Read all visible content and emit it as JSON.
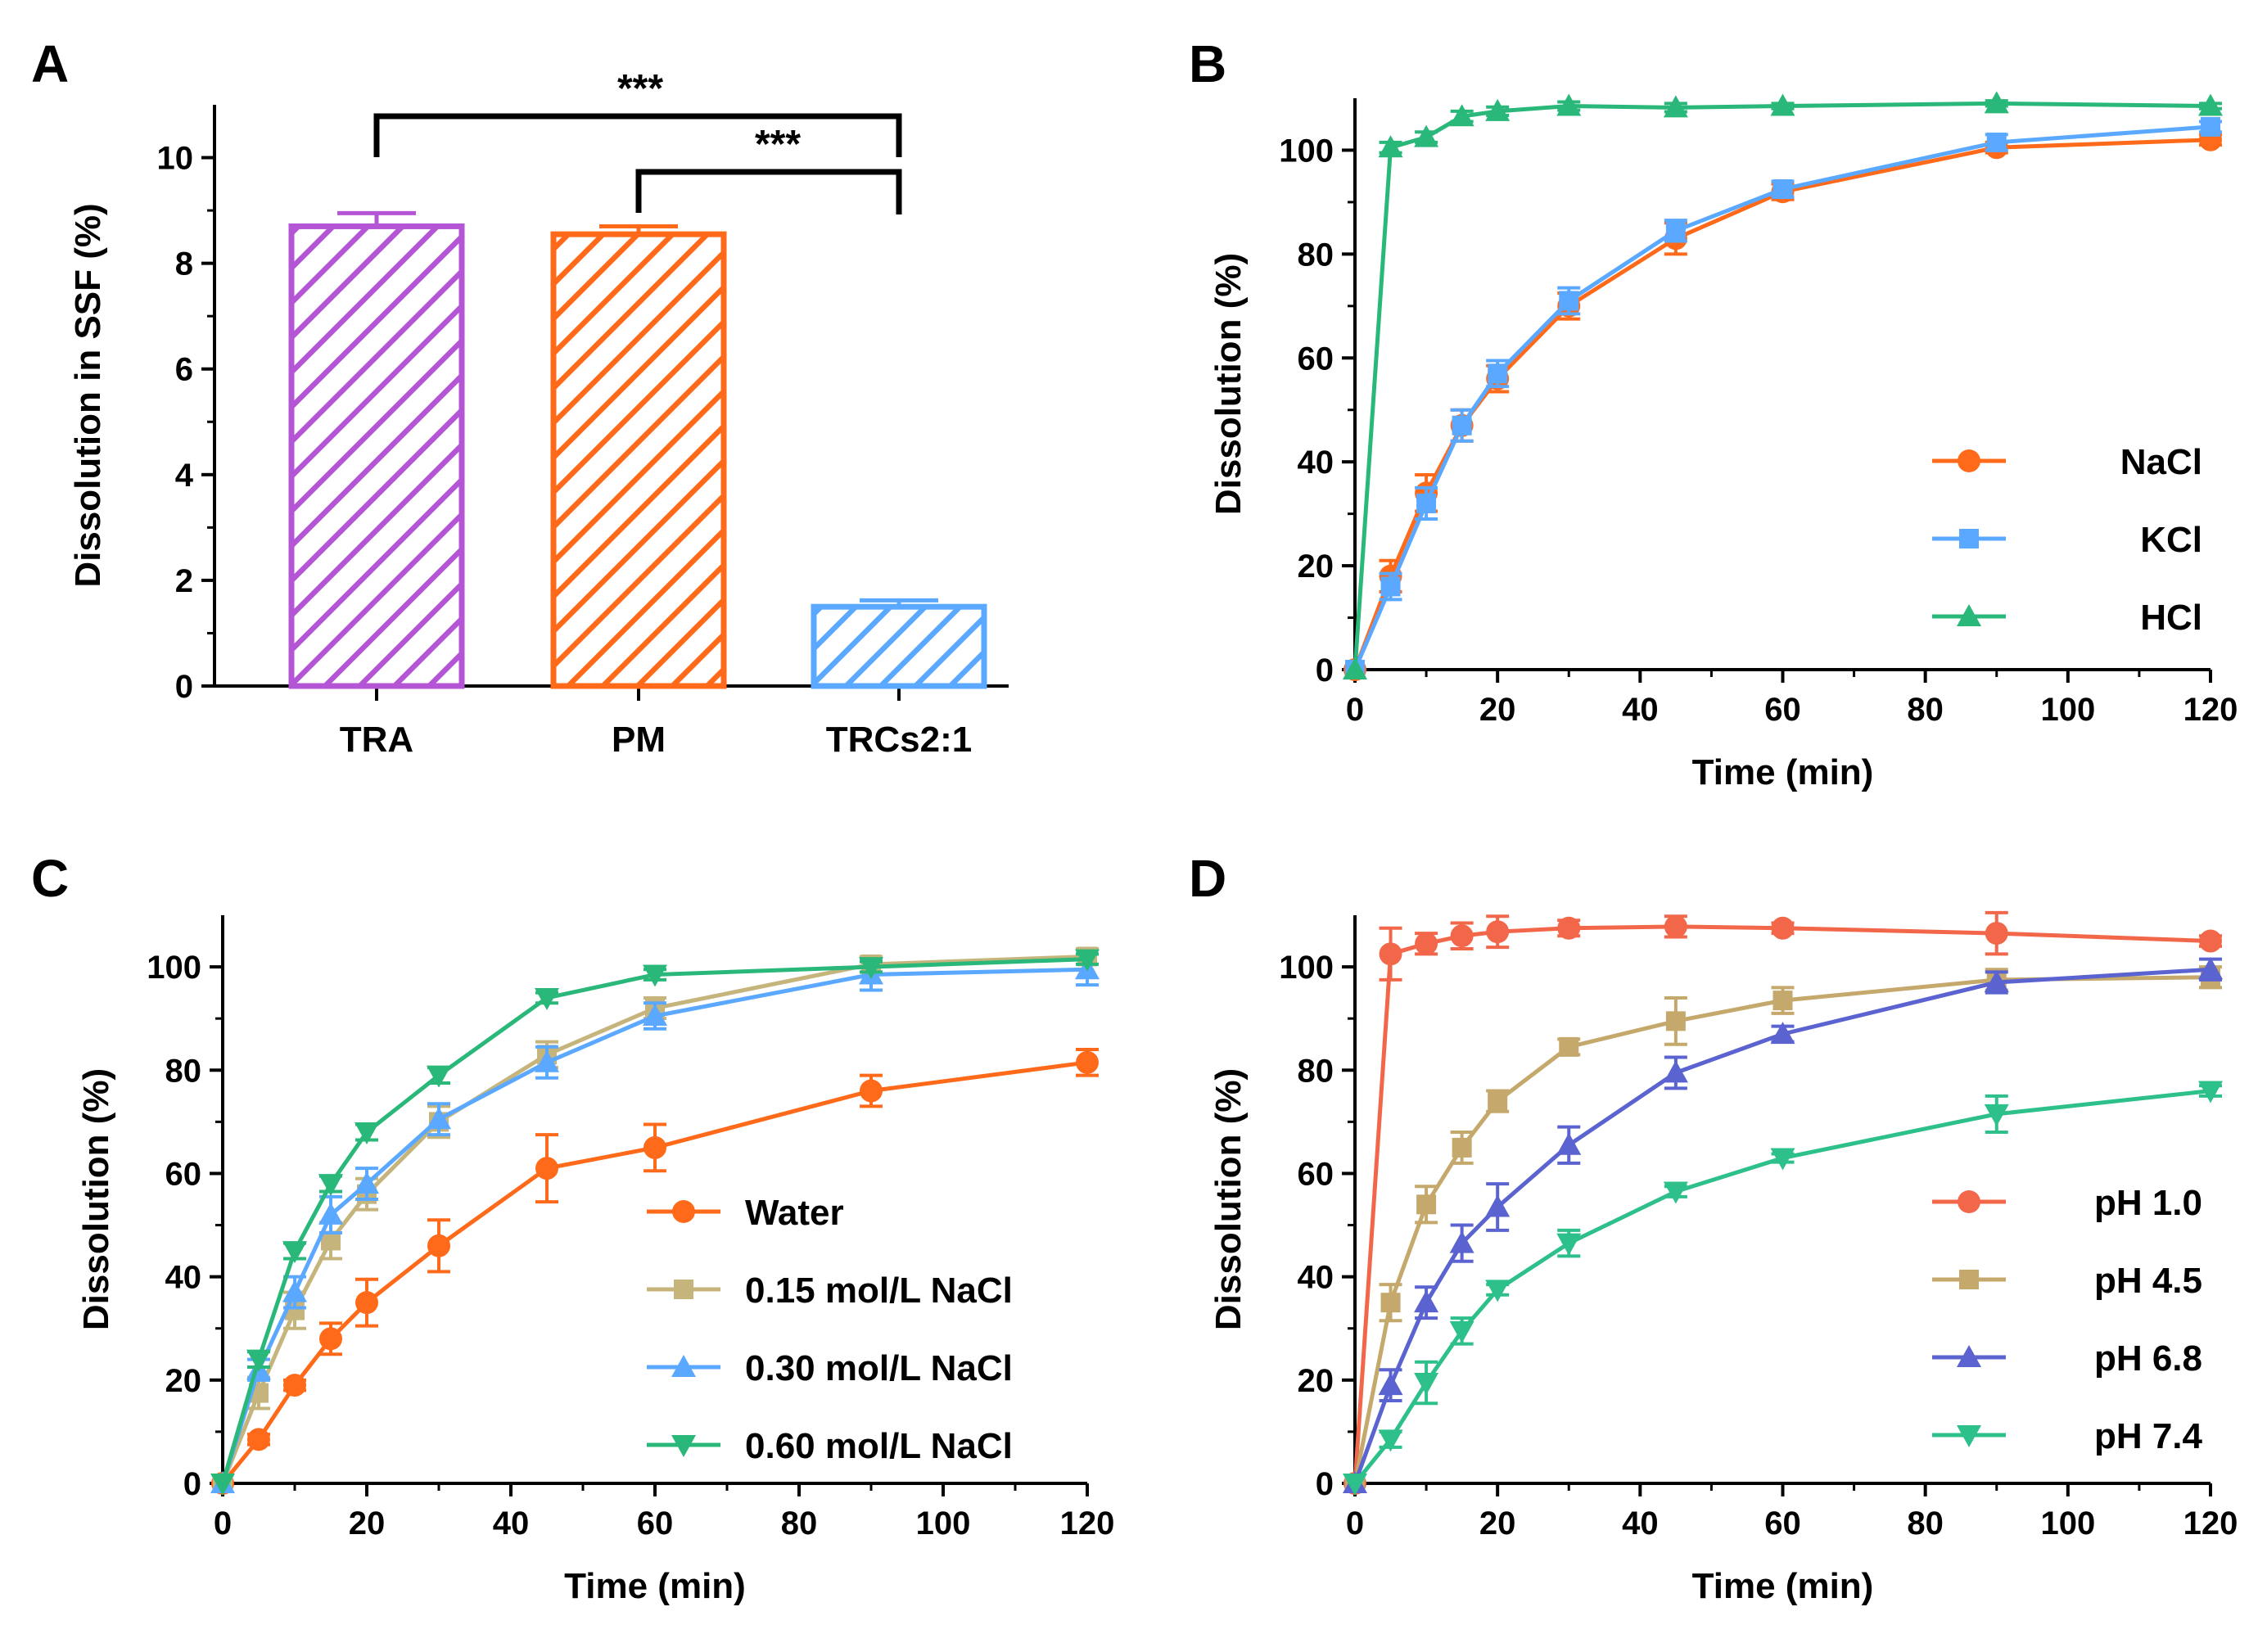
{
  "figure": {
    "panels": [
      "A",
      "B",
      "C",
      "D"
    ]
  },
  "chart_data": [
    {
      "id": "A",
      "type": "bar",
      "title": "",
      "ylabel": "Dissolution in SSF (%)",
      "xlabel": "",
      "ylim": [
        0,
        11
      ],
      "yticks": [
        0,
        2,
        4,
        6,
        8,
        10
      ],
      "categories": [
        "TRA",
        "PM",
        "TRCs2:1"
      ],
      "values": [
        8.7,
        8.55,
        1.5
      ],
      "errors": [
        0.25,
        0.15,
        0.12
      ],
      "colors": [
        "#b455d6",
        "#ff6a1a",
        "#5aa8ff"
      ],
      "significance": [
        {
          "from": "TRA",
          "to": "TRCs2:1",
          "label": "***"
        },
        {
          "from": "PM",
          "to": "TRCs2:1",
          "label": "***"
        }
      ]
    },
    {
      "id": "B",
      "type": "line",
      "xlabel": "Time (min)",
      "ylabel": "Dissolution (%)",
      "xlim": [
        0,
        120
      ],
      "ylim": [
        0,
        110
      ],
      "xticks": [
        0,
        20,
        40,
        60,
        80,
        100,
        120
      ],
      "yticks": [
        0,
        20,
        40,
        60,
        80,
        100
      ],
      "x": [
        0,
        5,
        10,
        15,
        20,
        30,
        45,
        60,
        90,
        120
      ],
      "legend_position": "lower-right",
      "series": [
        {
          "name": "NaCl",
          "marker": "circle",
          "color": "#ff6a1a",
          "values": [
            0,
            18,
            34,
            47,
            56,
            70,
            83,
            92,
            100.5,
            102
          ],
          "errors": [
            0,
            3,
            3.5,
            3,
            2.5,
            2.5,
            3,
            1.5,
            1,
            1
          ]
        },
        {
          "name": "KCl",
          "marker": "square",
          "color": "#5aa8ff",
          "values": [
            0,
            16,
            32,
            47,
            57,
            71,
            84.5,
            92.5,
            101.5,
            104.5
          ],
          "errors": [
            0,
            2.5,
            3,
            3,
            2.5,
            2.5,
            2,
            1.5,
            1.5,
            1
          ]
        },
        {
          "name": "HCl",
          "marker": "triangle-up",
          "color": "#2ab87a",
          "values": [
            0,
            100.5,
            102.5,
            106.5,
            107.5,
            108.5,
            108.2,
            108.5,
            109,
            108.5
          ],
          "errors": [
            0,
            1,
            1,
            1,
            0.8,
            0.8,
            0.8,
            0.5,
            0.5,
            0.5
          ]
        }
      ]
    },
    {
      "id": "C",
      "type": "line",
      "xlabel": "Time (min)",
      "ylabel": "Dissolution (%)",
      "xlim": [
        0,
        120
      ],
      "ylim": [
        0,
        110
      ],
      "xticks": [
        0,
        20,
        40,
        60,
        80,
        100,
        120
      ],
      "yticks": [
        0,
        20,
        40,
        60,
        80,
        100
      ],
      "x": [
        0,
        5,
        10,
        15,
        20,
        30,
        45,
        60,
        90,
        120
      ],
      "legend_position": "lower-right",
      "series": [
        {
          "name": "Water",
          "marker": "circle",
          "color": "#ff6a1a",
          "values": [
            0,
            8.5,
            19,
            28,
            35,
            46,
            61,
            65,
            76,
            81.5
          ],
          "errors": [
            0,
            1,
            1,
            3,
            4.5,
            5,
            6.5,
            4.5,
            3,
            2.5
          ]
        },
        {
          "name": "0.15 mol/L NaCl",
          "marker": "square",
          "color": "#c5b57c",
          "values": [
            0,
            17.5,
            33.5,
            47,
            56,
            70,
            83,
            92,
            100.5,
            102
          ],
          "errors": [
            0,
            3,
            3.5,
            3.5,
            3,
            3,
            2.5,
            2,
            1.5,
            1.5
          ]
        },
        {
          "name": "0.30 mol/L NaCl",
          "marker": "triangle-up",
          "color": "#5aa8ff",
          "values": [
            0,
            22,
            37,
            52,
            58,
            70.5,
            81.5,
            90.5,
            98.5,
            99.5
          ],
          "errors": [
            0,
            2,
            3,
            3.5,
            3,
            3,
            3,
            2.5,
            3,
            3
          ]
        },
        {
          "name": "0.60 mol/L NaCl",
          "marker": "triangle-down",
          "color": "#2ab87a",
          "values": [
            0,
            24,
            45,
            58,
            68,
            79,
            94,
            98.5,
            100,
            101.5
          ],
          "errors": [
            0,
            1.5,
            1.5,
            1.5,
            1.5,
            1.5,
            1,
            1,
            1,
            1
          ]
        }
      ]
    },
    {
      "id": "D",
      "type": "line",
      "xlabel": "Time (min)",
      "ylabel": "Dissolution (%)",
      "xlim": [
        0,
        120
      ],
      "ylim": [
        0,
        110
      ],
      "xticks": [
        0,
        20,
        40,
        60,
        80,
        100,
        120
      ],
      "yticks": [
        0,
        20,
        40,
        60,
        80,
        100
      ],
      "x": [
        0,
        5,
        10,
        15,
        20,
        30,
        45,
        60,
        90,
        120
      ],
      "legend_position": "lower-right",
      "series": [
        {
          "name": "pH 1.0",
          "marker": "circle",
          "color": "#f2674a",
          "values": [
            0,
            102.5,
            104.5,
            106,
            106.8,
            107.5,
            107.8,
            107.5,
            106.5,
            105
          ],
          "errors": [
            0,
            5,
            2,
            2.5,
            3,
            1.5,
            2,
            1,
            4,
            1
          ]
        },
        {
          "name": "pH 4.5",
          "marker": "square",
          "color": "#c5a86b",
          "values": [
            0,
            35,
            54,
            65,
            74,
            84.5,
            89.5,
            93.5,
            97.5,
            98
          ],
          "errors": [
            0,
            3.5,
            3.5,
            3,
            2,
            1.5,
            4.5,
            2.5,
            2,
            2
          ]
        },
        {
          "name": "pH 6.8",
          "marker": "triangle-up",
          "color": "#5a63d0",
          "values": [
            0,
            19,
            35,
            46.5,
            53.5,
            65.5,
            79.5,
            87,
            97,
            99.5
          ],
          "errors": [
            0,
            3,
            3,
            3.5,
            4.5,
            3.5,
            3,
            1.5,
            2,
            2
          ]
        },
        {
          "name": "pH 7.4",
          "marker": "triangle-down",
          "color": "#2ec08a",
          "values": [
            0,
            8.5,
            19.5,
            29.5,
            37.5,
            46.5,
            56.5,
            63,
            71.5,
            76
          ],
          "errors": [
            0,
            1.5,
            4,
            2.5,
            1,
            2.5,
            1,
            0.8,
            3.5,
            1
          ]
        }
      ]
    }
  ]
}
